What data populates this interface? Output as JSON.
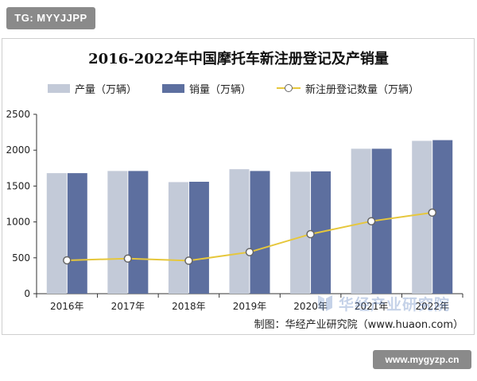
{
  "badge_top": "TG: MYYJJPP",
  "badge_bottom": "www.mygyzp.cn",
  "watermark_text": "华经产业研究院",
  "source_note": "制图：华经产业研究院（www.huaon.com）",
  "chart_data": {
    "type": "bar",
    "title": "2016-2022年中国摩托车新注册登记及产销量",
    "categories": [
      "2016年",
      "2017年",
      "2018年",
      "2019年",
      "2020年",
      "2021年",
      "2022年"
    ],
    "series": [
      {
        "name": "产量（万辆）",
        "type": "bar",
        "color": "#c3cad8",
        "values": [
          1680,
          1710,
          1555,
          1735,
          1700,
          2020,
          2130
        ]
      },
      {
        "name": "销量（万辆）",
        "type": "bar",
        "color": "#5d6f9f",
        "values": [
          1680,
          1710,
          1560,
          1710,
          1705,
          2020,
          2140
        ]
      },
      {
        "name": "新注册登记数量（万辆）",
        "type": "line",
        "color": "#e6c73c",
        "values": [
          465,
          490,
          460,
          580,
          830,
          1010,
          1130
        ]
      }
    ],
    "ylim": [
      0,
      2500
    ],
    "yticks": [
      "0",
      "500",
      "1000",
      "1500",
      "2000",
      "2500"
    ],
    "grid": false,
    "legend": "top"
  }
}
